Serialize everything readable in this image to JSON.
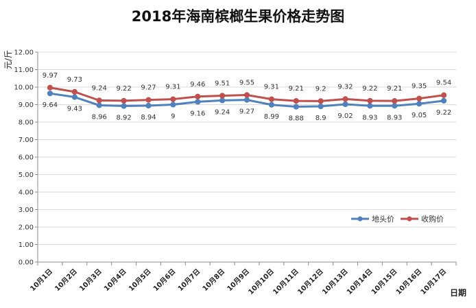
{
  "chart_data": {
    "type": "line",
    "title": "2018年海南槟榔生果价格走势图",
    "ylabel": "元/斤",
    "xlabel": "日期",
    "ylim": [
      0,
      12
    ],
    "ytick_step": 1,
    "ytick_labels": [
      "0.00",
      "1.00",
      "2.00",
      "3.00",
      "4.00",
      "5.00",
      "6.00",
      "7.00",
      "8.00",
      "9.00",
      "10.00",
      "11.00",
      "12.00"
    ],
    "grid": true,
    "legend_position": "right",
    "categories": [
      "10月1日",
      "10月2日",
      "10月3日",
      "10月4日",
      "10月5日",
      "10月6日",
      "10月7日",
      "10月8日",
      "10月9日",
      "10月10日",
      "10月11日",
      "10月12日",
      "10月13日",
      "10月14日",
      "10月15日",
      "10月16日",
      "10月17日"
    ],
    "series": [
      {
        "name": "地头价",
        "color": "#4f81bd",
        "values": [
          9.64,
          9.43,
          8.96,
          8.92,
          8.94,
          9,
          9.16,
          9.24,
          9.27,
          8.99,
          8.88,
          8.9,
          9.02,
          8.93,
          8.93,
          9.05,
          9.22
        ],
        "labels": [
          "9.64",
          "9.43",
          "8.96",
          "8.92",
          "8.94",
          "9",
          "9.16",
          "9.24",
          "9.27",
          "8.99",
          "8.88",
          "8.9",
          "9.02",
          "8.93",
          "8.93",
          "9.05",
          "9.22"
        ],
        "label_position": "below"
      },
      {
        "name": "收购价",
        "color": "#c0504d",
        "values": [
          9.97,
          9.73,
          9.24,
          9.22,
          9.27,
          9.31,
          9.46,
          9.51,
          9.55,
          9.31,
          9.21,
          9.2,
          9.32,
          9.22,
          9.21,
          9.35,
          9.54
        ],
        "labels": [
          "9.97",
          "9.73",
          "9.24",
          "9.22",
          "9.27",
          "9.31",
          "9.46",
          "9.51",
          "9.55",
          "9.31",
          "9.21",
          "9.2",
          "9.32",
          "9.22",
          "9.21",
          "9.35",
          "9.54"
        ],
        "label_position": "above"
      }
    ]
  }
}
